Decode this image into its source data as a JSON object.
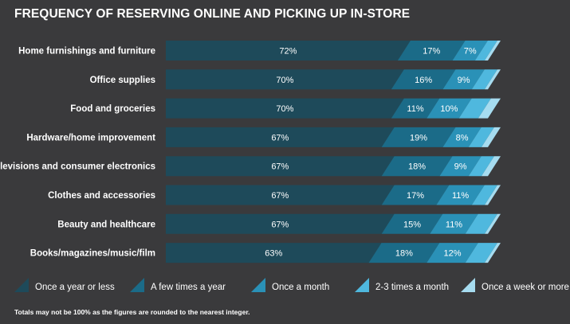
{
  "chart_data": {
    "type": "bar",
    "stacked": true,
    "orientation": "horizontal",
    "title": "FREQUENCY OF RESERVING ONLINE AND PICKING UP IN-STORE",
    "categories": [
      "Home furnishings and furniture",
      "Office supplies",
      "Food and groceries",
      "Hardware/home improvement",
      "Televisions and consumer electronics",
      "Clothes and accessories",
      "Beauty and healthcare",
      "Books/magazines/music/film"
    ],
    "series": [
      {
        "name": "Once a year or less",
        "color": "#1e4a5a",
        "values": [
          72,
          70,
          70,
          67,
          67,
          67,
          67,
          63
        ],
        "labels": [
          "72%",
          "70%",
          "70%",
          "67%",
          "67%",
          "67%",
          "67%",
          "63%"
        ]
      },
      {
        "name": "A few times a year",
        "color": "#1b6b88",
        "values": [
          17,
          16,
          11,
          19,
          18,
          17,
          15,
          18
        ],
        "labels": [
          "17%",
          "16%",
          "11%",
          "19%",
          "18%",
          "17%",
          "15%",
          "18%"
        ]
      },
      {
        "name": "Once a month",
        "color": "#2a91b7",
        "values": [
          7,
          9,
          10,
          8,
          9,
          11,
          11,
          12
        ],
        "labels": [
          "7%",
          "9%",
          "10%",
          "8%",
          "9%",
          "11%",
          "11%",
          "12%"
        ]
      },
      {
        "name": "2-3 times a month",
        "color": "#4fb8de",
        "values": [
          3,
          4,
          6,
          4,
          4,
          4,
          6,
          6
        ],
        "labels": [
          "",
          "",
          "",
          "",
          "",
          "",
          "",
          ""
        ]
      },
      {
        "name": "Once a week or more",
        "color": "#a6dcf0",
        "values": [
          1,
          1,
          3,
          2,
          2,
          1,
          1,
          1
        ],
        "labels": [
          "",
          "",
          "",
          "",
          "",
          "",
          "",
          ""
        ]
      }
    ],
    "xlim": [
      0,
      100
    ],
    "legend_position": "bottom",
    "grid": false
  },
  "footnote": "Totals may not be 100% as the figures are rounded to the nearest integer.",
  "colors": {
    "background": "#3a3a3c",
    "text": "#ffffff"
  }
}
